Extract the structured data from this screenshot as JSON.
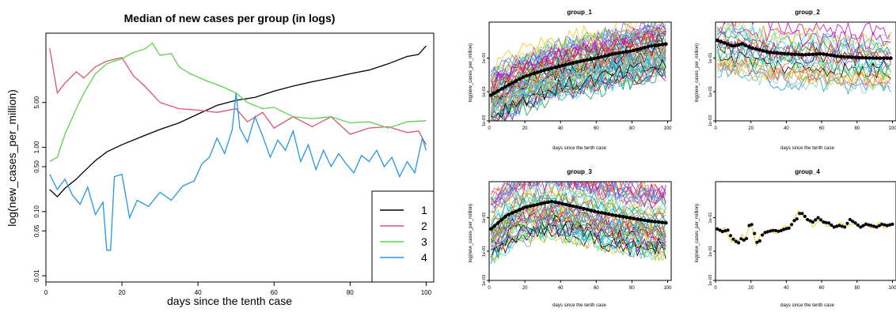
{
  "chart_data": [
    {
      "type": "line",
      "title": "Median of new cases per group (in logs)",
      "xlabel": "days since the tenth case",
      "ylabel": "log(new_cases_per_million)",
      "log_y": true,
      "xlim": [
        0,
        102
      ],
      "ylim": [
        0.008,
        60
      ],
      "x_ticks": [
        0,
        20,
        40,
        60,
        80,
        100
      ],
      "x_tick_labels": [
        "0",
        "20",
        "40",
        "60",
        "80",
        "100"
      ],
      "y_ticks": [
        0.01,
        0.05,
        0.1,
        0.5,
        1,
        5
      ],
      "y_tick_labels": [
        "0.01",
        "0.05",
        "0.10",
        "0.50",
        "1.00",
        "5.00"
      ],
      "legend_position": "bottom-right",
      "series": [
        {
          "name": "1",
          "color": "#000000",
          "points": [
            [
              1,
              0.22
            ],
            [
              3,
              0.17
            ],
            [
              5,
              0.23
            ],
            [
              8,
              0.32
            ],
            [
              10,
              0.42
            ],
            [
              13,
              0.62
            ],
            [
              16,
              0.85
            ],
            [
              20,
              1.1
            ],
            [
              25,
              1.45
            ],
            [
              30,
              1.9
            ],
            [
              35,
              2.4
            ],
            [
              40,
              3.3
            ],
            [
              45,
              4.5
            ],
            [
              50,
              5.4
            ],
            [
              55,
              6
            ],
            [
              60,
              7.5
            ],
            [
              65,
              9
            ],
            [
              70,
              10.5
            ],
            [
              75,
              12
            ],
            [
              80,
              14
            ],
            [
              85,
              16
            ],
            [
              90,
              20
            ],
            [
              95,
              26
            ],
            [
              98,
              28
            ],
            [
              100,
              38
            ]
          ]
        },
        {
          "name": "2",
          "color": "#df536b",
          "points": [
            [
              1,
              35
            ],
            [
              3,
              7
            ],
            [
              5,
              10
            ],
            [
              8,
              15
            ],
            [
              10,
              12
            ],
            [
              13,
              18
            ],
            [
              16,
              22
            ],
            [
              20,
              25
            ],
            [
              23,
              13
            ],
            [
              26,
              9
            ],
            [
              30,
              5
            ],
            [
              35,
              4
            ],
            [
              40,
              3.8
            ],
            [
              45,
              3.5
            ],
            [
              50,
              4
            ],
            [
              53,
              2.5
            ],
            [
              57,
              3.5
            ],
            [
              60,
              2
            ],
            [
              65,
              3
            ],
            [
              70,
              2.1
            ],
            [
              75,
              3
            ],
            [
              80,
              1.6
            ],
            [
              85,
              2
            ],
            [
              90,
              2.1
            ],
            [
              95,
              1.7
            ],
            [
              98,
              1.8
            ],
            [
              100,
              1.1
            ]
          ]
        },
        {
          "name": "3",
          "color": "#61d04f",
          "points": [
            [
              1,
              0.6
            ],
            [
              3,
              0.7
            ],
            [
              5,
              1.6
            ],
            [
              8,
              4
            ],
            [
              10,
              7
            ],
            [
              13,
              14
            ],
            [
              16,
              20
            ],
            [
              20,
              24
            ],
            [
              23,
              30
            ],
            [
              26,
              34
            ],
            [
              28,
              42
            ],
            [
              30,
              27
            ],
            [
              33,
              29
            ],
            [
              35,
              18
            ],
            [
              38,
              14
            ],
            [
              42,
              11
            ],
            [
              46,
              9
            ],
            [
              50,
              7
            ],
            [
              53,
              5
            ],
            [
              57,
              4
            ],
            [
              60,
              4.2
            ],
            [
              65,
              3
            ],
            [
              70,
              2.8
            ],
            [
              75,
              3
            ],
            [
              80,
              2.4
            ],
            [
              85,
              2.5
            ],
            [
              90,
              2
            ],
            [
              95,
              2.5
            ],
            [
              100,
              2.6
            ]
          ]
        },
        {
          "name": "4",
          "color": "#2297e6",
          "points": [
            [
              1,
              0.38
            ],
            [
              3,
              0.22
            ],
            [
              5,
              0.32
            ],
            [
              7,
              0.18
            ],
            [
              9,
              0.13
            ],
            [
              11,
              0.24
            ],
            [
              13,
              0.09
            ],
            [
              15,
              0.14
            ],
            [
              16,
              0.025
            ],
            [
              17,
              0.025
            ],
            [
              18,
              0.35
            ],
            [
              20,
              0.38
            ],
            [
              22,
              0.08
            ],
            [
              24,
              0.15
            ],
            [
              27,
              0.12
            ],
            [
              30,
              0.2
            ],
            [
              33,
              0.15
            ],
            [
              36,
              0.25
            ],
            [
              39,
              0.3
            ],
            [
              41,
              0.55
            ],
            [
              43,
              0.7
            ],
            [
              45,
              1.4
            ],
            [
              47,
              0.8
            ],
            [
              49,
              1.9
            ],
            [
              50,
              7
            ],
            [
              51,
              2
            ],
            [
              53,
              1.2
            ],
            [
              55,
              3
            ],
            [
              57,
              1.5
            ],
            [
              59,
              0.7
            ],
            [
              61,
              1.3
            ],
            [
              63,
              0.9
            ],
            [
              65,
              1.8
            ],
            [
              67,
              0.6
            ],
            [
              69,
              1.1
            ],
            [
              71,
              0.45
            ],
            [
              73,
              0.9
            ],
            [
              75,
              0.5
            ],
            [
              77,
              0.8
            ],
            [
              79,
              0.55
            ],
            [
              81,
              0.4
            ],
            [
              83,
              0.75
            ],
            [
              85,
              0.6
            ],
            [
              87,
              0.9
            ],
            [
              89,
              0.5
            ],
            [
              91,
              0.7
            ],
            [
              93,
              0.35
            ],
            [
              95,
              0.6
            ],
            [
              97,
              0.4
            ],
            [
              99,
              1.4
            ],
            [
              100,
              0.9
            ]
          ]
        }
      ]
    },
    {
      "type": "line",
      "title": "group_1",
      "xlabel": "days since the tenth case",
      "ylabel": "log(new_cases_per_million)",
      "log_y": true,
      "xlim": [
        0,
        102
      ],
      "ylim": [
        0.001,
        100
      ],
      "x_tick_labels": [
        "0",
        "20",
        "40",
        "60",
        "80",
        "100"
      ],
      "y_tick_labels": [
        "1e-03",
        "1e-01",
        "1e-01"
      ],
      "median": [
        [
          1,
          0.02
        ],
        [
          10,
          0.06
        ],
        [
          20,
          0.18
        ],
        [
          30,
          0.35
        ],
        [
          40,
          0.6
        ],
        [
          50,
          1
        ],
        [
          60,
          1.5
        ],
        [
          70,
          2.5
        ],
        [
          80,
          3.5
        ],
        [
          90,
          6
        ],
        [
          100,
          8
        ]
      ],
      "color_lines": 60,
      "color_band": [
        0.003,
        30
      ]
    },
    {
      "type": "line",
      "title": "group_2",
      "xlabel": "days since the tenth case",
      "ylabel": "log(new_cases_per_million)",
      "log_y": true,
      "xlim": [
        0,
        102
      ],
      "ylim": [
        0.001,
        100
      ],
      "x_tick_labels": [
        "0",
        "20",
        "40",
        "60",
        "80",
        "100"
      ],
      "y_tick_labels": [
        "1e-03",
        "1e-01",
        "1e-01"
      ],
      "median": [
        [
          1,
          12
        ],
        [
          10,
          6
        ],
        [
          15,
          8
        ],
        [
          20,
          5
        ],
        [
          30,
          3
        ],
        [
          40,
          2.5
        ],
        [
          50,
          2.2
        ],
        [
          60,
          2.5
        ],
        [
          70,
          1.8
        ],
        [
          80,
          1.6
        ],
        [
          90,
          1.5
        ],
        [
          100,
          1.5
        ]
      ],
      "color_lines": 24,
      "color_band": [
        0.003,
        60
      ]
    },
    {
      "type": "line",
      "title": "group_3",
      "xlabel": "days since the tenth case",
      "ylabel": "log(new_cases_per_million)",
      "log_y": true,
      "xlim": [
        0,
        102
      ],
      "ylim": [
        0.001,
        100
      ],
      "x_tick_labels": [
        "0",
        "20",
        "40",
        "60",
        "80",
        "100"
      ],
      "y_tick_labels": [
        "1e-03",
        "1e-01",
        "1e-01"
      ],
      "median": [
        [
          1,
          0.4
        ],
        [
          10,
          2
        ],
        [
          20,
          5
        ],
        [
          30,
          8
        ],
        [
          35,
          10
        ],
        [
          40,
          8
        ],
        [
          50,
          5
        ],
        [
          60,
          3
        ],
        [
          70,
          2
        ],
        [
          80,
          1.4
        ],
        [
          90,
          1
        ],
        [
          100,
          0.8
        ]
      ],
      "color_lines": 50,
      "color_band": [
        0.002,
        40
      ]
    },
    {
      "type": "scatter",
      "title": "group_4",
      "xlabel": "days since the tenth case",
      "ylabel": "log(new_cases_per_million)",
      "log_y": true,
      "xlim": [
        0,
        102
      ],
      "ylim": [
        0.001,
        100
      ],
      "x_tick_labels": [
        "0",
        "20",
        "40",
        "60",
        "80",
        "100"
      ],
      "y_tick_labels": [
        "1e-03",
        "1e-01",
        "1e-01"
      ],
      "median": [
        [
          1,
          0.4
        ],
        [
          4,
          0.3
        ],
        [
          7,
          0.35
        ],
        [
          9,
          0.15
        ],
        [
          11,
          0.1
        ],
        [
          13,
          0.08
        ],
        [
          15,
          0.15
        ],
        [
          17,
          0.08
        ],
        [
          19,
          0.6
        ],
        [
          21,
          0.7
        ],
        [
          23,
          0.08
        ],
        [
          25,
          0.1
        ],
        [
          27,
          0.25
        ],
        [
          30,
          0.3
        ],
        [
          33,
          0.35
        ],
        [
          36,
          0.3
        ],
        [
          39,
          0.4
        ],
        [
          42,
          0.45
        ],
        [
          44,
          1
        ],
        [
          46,
          1.3
        ],
        [
          48,
          3
        ],
        [
          50,
          2
        ],
        [
          52,
          1.2
        ],
        [
          55,
          0.9
        ],
        [
          58,
          1.5
        ],
        [
          61,
          0.9
        ],
        [
          64,
          0.8
        ],
        [
          67,
          0.5
        ],
        [
          70,
          0.6
        ],
        [
          73,
          0.5
        ],
        [
          76,
          1.2
        ],
        [
          79,
          0.8
        ],
        [
          82,
          0.5
        ],
        [
          85,
          0.7
        ],
        [
          88,
          0.6
        ],
        [
          91,
          0.5
        ],
        [
          94,
          0.7
        ],
        [
          97,
          0.6
        ],
        [
          100,
          0.7
        ]
      ]
    }
  ]
}
